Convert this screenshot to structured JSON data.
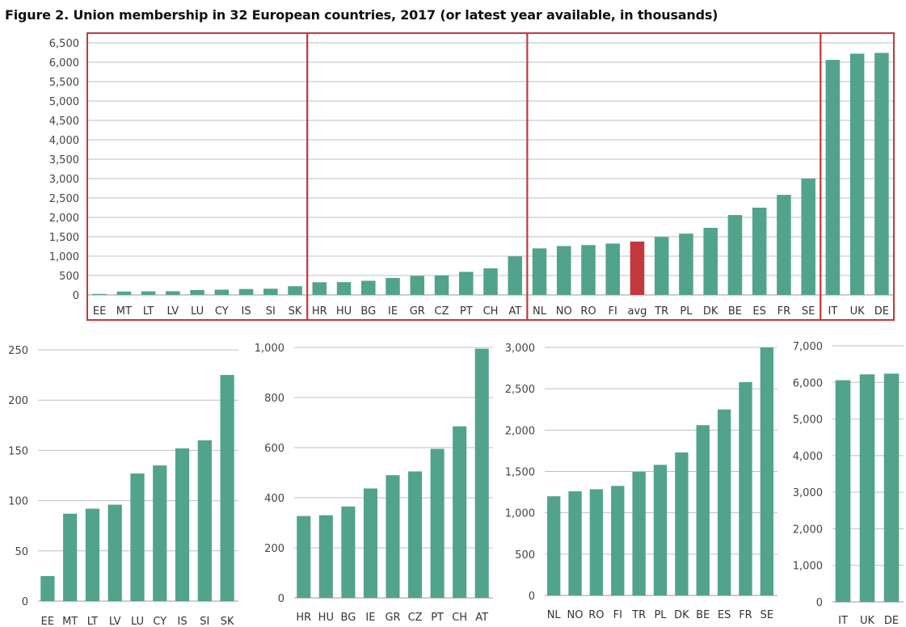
{
  "title": "Figure 2. Union membership in 32 European countries, 2017 (or latest year available, in thousands)",
  "colors": {
    "bar": "#52a38c",
    "avg_bar": "#c1393d",
    "group_border": "#c1393d",
    "grid": "#bfbfbf",
    "text": "#333333"
  },
  "chart_data": [
    {
      "type": "bar",
      "title": "",
      "xlabel": "",
      "ylabel": "",
      "ylim": [
        0,
        6500
      ],
      "yticks": [
        0,
        500,
        1000,
        1500,
        2000,
        2500,
        3000,
        3500,
        4000,
        4500,
        5000,
        5500,
        6000,
        6500
      ],
      "ytick_labels": [
        "0",
        "500",
        "1,000",
        "1,500",
        "2,000",
        "2,500",
        "3,000",
        "3,500",
        "4,000",
        "4,500",
        "5,000",
        "5,500",
        "6,000",
        "6,500"
      ],
      "grid": true,
      "categories": [
        "EE",
        "MT",
        "LT",
        "LV",
        "LU",
        "CY",
        "IS",
        "SI",
        "SK",
        "HR",
        "HU",
        "BG",
        "IE",
        "GR",
        "CZ",
        "PT",
        "CH",
        "AT",
        "NL",
        "NO",
        "RO",
        "FI",
        "avg",
        "TR",
        "PL",
        "DK",
        "BE",
        "ES",
        "FR",
        "SE",
        "IT",
        "UK",
        "DE"
      ],
      "values": [
        25,
        87,
        92,
        96,
        127,
        135,
        152,
        160,
        225,
        327,
        330,
        365,
        437,
        490,
        505,
        595,
        685,
        995,
        1200,
        1260,
        1285,
        1325,
        1375,
        1495,
        1580,
        1730,
        2060,
        2250,
        2580,
        3000,
        6060,
        6220,
        6240
      ],
      "highlight": "avg",
      "groups": [
        [
          "EE",
          "SK"
        ],
        [
          "HR",
          "AT"
        ],
        [
          "NL",
          "SE"
        ],
        [
          "IT",
          "DE"
        ]
      ]
    },
    {
      "type": "bar",
      "title": "",
      "xlabel": "",
      "ylabel": "",
      "ylim": [
        0,
        250
      ],
      "yticks": [
        0,
        50,
        100,
        150,
        200,
        250
      ],
      "ytick_labels": [
        "0",
        "50",
        "100",
        "150",
        "200",
        "250"
      ],
      "grid": true,
      "categories": [
        "EE",
        "MT",
        "LT",
        "LV",
        "LU",
        "CY",
        "IS",
        "SI",
        "SK"
      ],
      "values": [
        25,
        87,
        92,
        96,
        127,
        135,
        152,
        160,
        225
      ]
    },
    {
      "type": "bar",
      "title": "",
      "xlabel": "",
      "ylabel": "",
      "ylim": [
        0,
        1000
      ],
      "yticks": [
        0,
        200,
        400,
        600,
        800,
        1000
      ],
      "ytick_labels": [
        "0",
        "200",
        "400",
        "600",
        "800",
        "1,000"
      ],
      "grid": true,
      "categories": [
        "HR",
        "HU",
        "BG",
        "IE",
        "GR",
        "CZ",
        "PT",
        "CH",
        "AT"
      ],
      "values": [
        327,
        330,
        365,
        437,
        490,
        505,
        595,
        685,
        995
      ]
    },
    {
      "type": "bar",
      "title": "",
      "xlabel": "",
      "ylabel": "",
      "ylim": [
        0,
        3000
      ],
      "yticks": [
        0,
        500,
        1000,
        1500,
        2000,
        2500,
        3000
      ],
      "ytick_labels": [
        "0",
        "500",
        "1,000",
        "1,500",
        "2,000",
        "2,500",
        "3,000"
      ],
      "grid": true,
      "categories": [
        "NL",
        "NO",
        "RO",
        "FI",
        "TR",
        "PL",
        "DK",
        "BE",
        "ES",
        "FR",
        "SE"
      ],
      "values": [
        1200,
        1260,
        1285,
        1325,
        1495,
        1580,
        1730,
        2060,
        2250,
        2580,
        3000
      ]
    },
    {
      "type": "bar",
      "title": "",
      "xlabel": "",
      "ylabel": "",
      "ylim": [
        0,
        7000
      ],
      "yticks": [
        0,
        1000,
        2000,
        3000,
        4000,
        5000,
        6000,
        7000
      ],
      "ytick_labels": [
        "0",
        "1,000",
        "2,000",
        "3,000",
        "4,000",
        "5,000",
        "6,000",
        "7,000"
      ],
      "grid": true,
      "categories": [
        "IT",
        "UK",
        "DE"
      ],
      "values": [
        6060,
        6220,
        6240
      ]
    }
  ]
}
